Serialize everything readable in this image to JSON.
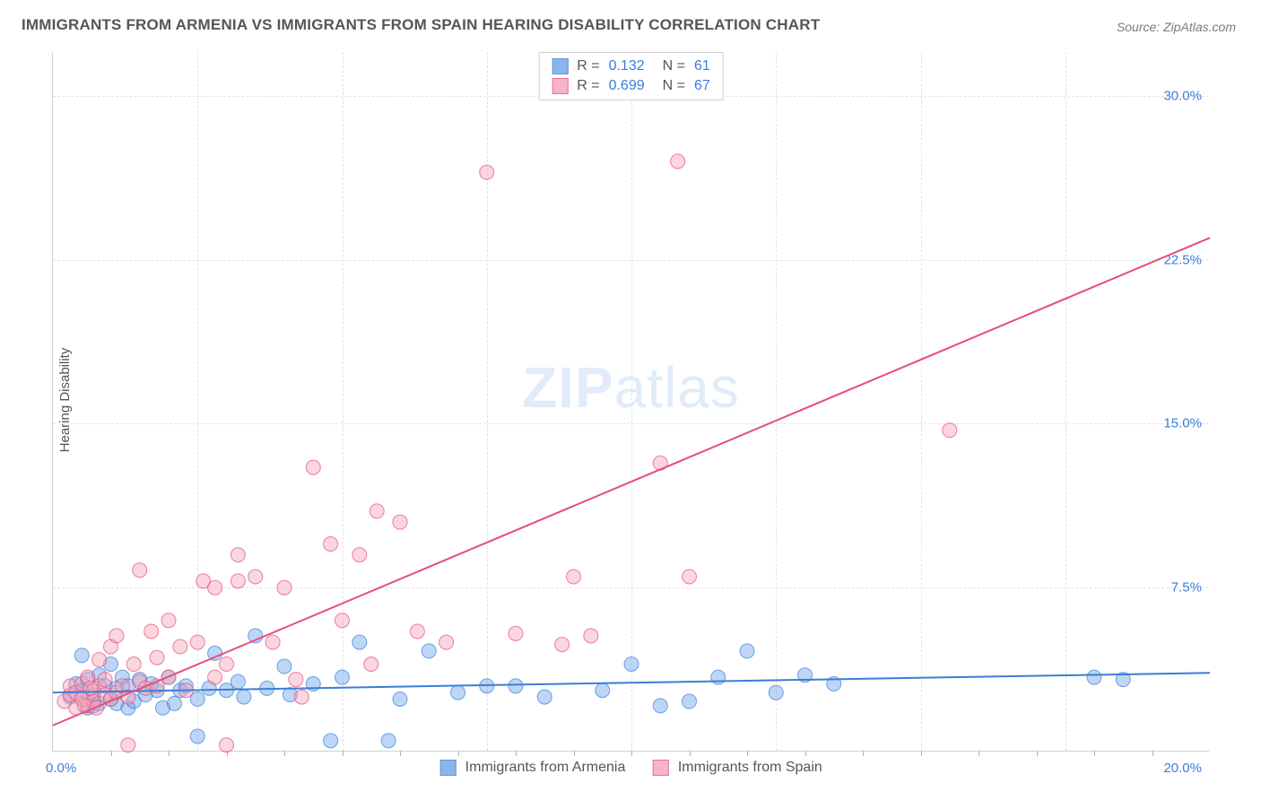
{
  "title": "IMMIGRANTS FROM ARMENIA VS IMMIGRANTS FROM SPAIN HEARING DISABILITY CORRELATION CHART",
  "source": "Source: ZipAtlas.com",
  "ylabel": "Hearing Disability",
  "watermark_a": "ZIP",
  "watermark_b": "atlas",
  "chart": {
    "type": "scatter",
    "xlim": [
      0,
      20
    ],
    "ylim": [
      0,
      32
    ],
    "x_ticks_minor_step": 1,
    "y_gridlines": [
      7.5,
      15.0,
      22.5,
      30.0
    ],
    "y_tick_labels": [
      "7.5%",
      "15.0%",
      "22.5%",
      "30.0%"
    ],
    "x_tick_left": "0.0%",
    "x_tick_right": "20.0%",
    "background_color": "#ffffff",
    "grid_color": "#e2e2e2",
    "axis_color": "#d0d0d0",
    "tick_label_color": "#3b7dd8",
    "marker_radius": 8,
    "marker_opacity": 0.45,
    "line_width": 2,
    "series": [
      {
        "name": "Immigrants from Armenia",
        "color": "#6ea3e8",
        "stroke": "#3b7dd8",
        "R": "0.132",
        "N": "61",
        "trend": {
          "x1": 0,
          "y1": 2.7,
          "x2": 20,
          "y2": 3.6
        },
        "points": [
          [
            0.3,
            2.5
          ],
          [
            0.4,
            3.1
          ],
          [
            0.5,
            2.8
          ],
          [
            0.5,
            4.4
          ],
          [
            0.6,
            2.0
          ],
          [
            0.6,
            3.3
          ],
          [
            0.7,
            2.1
          ],
          [
            0.7,
            2.6
          ],
          [
            0.8,
            3.5
          ],
          [
            0.8,
            2.2
          ],
          [
            0.9,
            3.0
          ],
          [
            1.0,
            2.4
          ],
          [
            1.0,
            4.0
          ],
          [
            1.1,
            2.2
          ],
          [
            1.1,
            2.9
          ],
          [
            1.2,
            3.4
          ],
          [
            1.3,
            2.0
          ],
          [
            1.3,
            3.0
          ],
          [
            1.4,
            2.3
          ],
          [
            1.5,
            3.3
          ],
          [
            1.6,
            2.6
          ],
          [
            1.7,
            3.1
          ],
          [
            1.8,
            2.8
          ],
          [
            1.9,
            2.0
          ],
          [
            2.0,
            3.4
          ],
          [
            2.1,
            2.2
          ],
          [
            2.2,
            2.8
          ],
          [
            2.3,
            3.0
          ],
          [
            2.5,
            2.4
          ],
          [
            2.5,
            0.7
          ],
          [
            2.7,
            2.9
          ],
          [
            2.8,
            4.5
          ],
          [
            3.0,
            2.8
          ],
          [
            3.2,
            3.2
          ],
          [
            3.3,
            2.5
          ],
          [
            3.5,
            5.3
          ],
          [
            3.7,
            2.9
          ],
          [
            4.0,
            3.9
          ],
          [
            4.1,
            2.6
          ],
          [
            4.5,
            3.1
          ],
          [
            4.8,
            0.5
          ],
          [
            5.0,
            3.4
          ],
          [
            5.3,
            5.0
          ],
          [
            5.8,
            0.5
          ],
          [
            6.0,
            2.4
          ],
          [
            6.5,
            4.6
          ],
          [
            7.0,
            2.7
          ],
          [
            7.5,
            3.0
          ],
          [
            8.0,
            3.0
          ],
          [
            8.5,
            2.5
          ],
          [
            9.5,
            2.8
          ],
          [
            10.0,
            4.0
          ],
          [
            10.5,
            2.1
          ],
          [
            11.0,
            2.3
          ],
          [
            11.5,
            3.4
          ],
          [
            12.0,
            4.6
          ],
          [
            12.5,
            2.7
          ],
          [
            13.0,
            3.5
          ],
          [
            13.5,
            3.1
          ],
          [
            18.0,
            3.4
          ],
          [
            18.5,
            3.3
          ]
        ]
      },
      {
        "name": "Immigrants from Spain",
        "color": "#f5a3b8",
        "stroke": "#e84c7a",
        "R": "0.699",
        "N": "67",
        "trend": {
          "x1": 0,
          "y1": 1.2,
          "x2": 20,
          "y2": 23.5
        },
        "points": [
          [
            0.2,
            2.3
          ],
          [
            0.3,
            2.6
          ],
          [
            0.3,
            3.0
          ],
          [
            0.4,
            2.0
          ],
          [
            0.4,
            2.7
          ],
          [
            0.5,
            3.1
          ],
          [
            0.5,
            2.4
          ],
          [
            0.6,
            2.1
          ],
          [
            0.6,
            3.4
          ],
          [
            0.7,
            2.8
          ],
          [
            0.7,
            2.3
          ],
          [
            0.8,
            3.0
          ],
          [
            0.8,
            4.2
          ],
          [
            0.9,
            2.6
          ],
          [
            0.9,
            3.3
          ],
          [
            1.0,
            2.4
          ],
          [
            1.0,
            4.8
          ],
          [
            1.1,
            2.7
          ],
          [
            1.1,
            5.3
          ],
          [
            1.2,
            3.0
          ],
          [
            1.3,
            2.5
          ],
          [
            1.3,
            0.3
          ],
          [
            1.4,
            4.0
          ],
          [
            1.5,
            3.2
          ],
          [
            1.5,
            8.3
          ],
          [
            1.6,
            2.9
          ],
          [
            1.7,
            5.5
          ],
          [
            1.8,
            3.0
          ],
          [
            1.8,
            4.3
          ],
          [
            2.0,
            3.4
          ],
          [
            2.0,
            6.0
          ],
          [
            2.2,
            4.8
          ],
          [
            2.3,
            2.8
          ],
          [
            2.5,
            5.0
          ],
          [
            2.6,
            7.8
          ],
          [
            2.8,
            3.4
          ],
          [
            2.8,
            7.5
          ],
          [
            3.0,
            4.0
          ],
          [
            3.0,
            0.3
          ],
          [
            3.2,
            7.8
          ],
          [
            3.2,
            9.0
          ],
          [
            3.5,
            8.0
          ],
          [
            3.8,
            5.0
          ],
          [
            4.0,
            7.5
          ],
          [
            4.2,
            3.3
          ],
          [
            4.5,
            13.0
          ],
          [
            4.8,
            9.5
          ],
          [
            5.0,
            6.0
          ],
          [
            5.3,
            9.0
          ],
          [
            5.5,
            4.0
          ],
          [
            5.6,
            11.0
          ],
          [
            6.0,
            10.5
          ],
          [
            6.3,
            5.5
          ],
          [
            6.8,
            5.0
          ],
          [
            7.5,
            26.5
          ],
          [
            8.0,
            5.4
          ],
          [
            8.8,
            4.9
          ],
          [
            9.0,
            8.0
          ],
          [
            9.3,
            5.3
          ],
          [
            10.5,
            13.2
          ],
          [
            10.8,
            27.0
          ],
          [
            11.0,
            8.0
          ],
          [
            15.5,
            14.7
          ],
          [
            4.3,
            2.5
          ],
          [
            0.55,
            2.1
          ],
          [
            0.65,
            2.9
          ],
          [
            0.75,
            2.0
          ]
        ]
      }
    ]
  },
  "legend": {
    "series1_label": "Immigrants from Armenia",
    "series2_label": "Immigrants from Spain"
  }
}
